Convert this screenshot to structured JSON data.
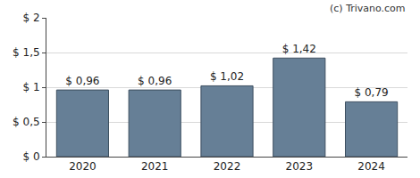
{
  "chart_data": {
    "type": "bar",
    "annotation": "(c) Trivano.com",
    "categories": [
      "2020",
      "2021",
      "2022",
      "2023",
      "2024"
    ],
    "values": [
      0.96,
      0.96,
      1.02,
      1.42,
      0.79
    ],
    "value_labels": [
      "$ 0,96",
      "$ 0,96",
      "$ 1,02",
      "$ 1,42",
      "$ 0,79"
    ],
    "data_labels": true,
    "color": "#667f96",
    "ylim": [
      0,
      2
    ],
    "yticks": [
      {
        "value": 0,
        "label": "$ 0"
      },
      {
        "value": 0.5,
        "label": "$ 0,5"
      },
      {
        "value": 1,
        "label": "$ 1"
      },
      {
        "value": 1.5,
        "label": "$ 1,5"
      },
      {
        "value": 2,
        "label": "$ 2"
      }
    ],
    "grid": true
  }
}
